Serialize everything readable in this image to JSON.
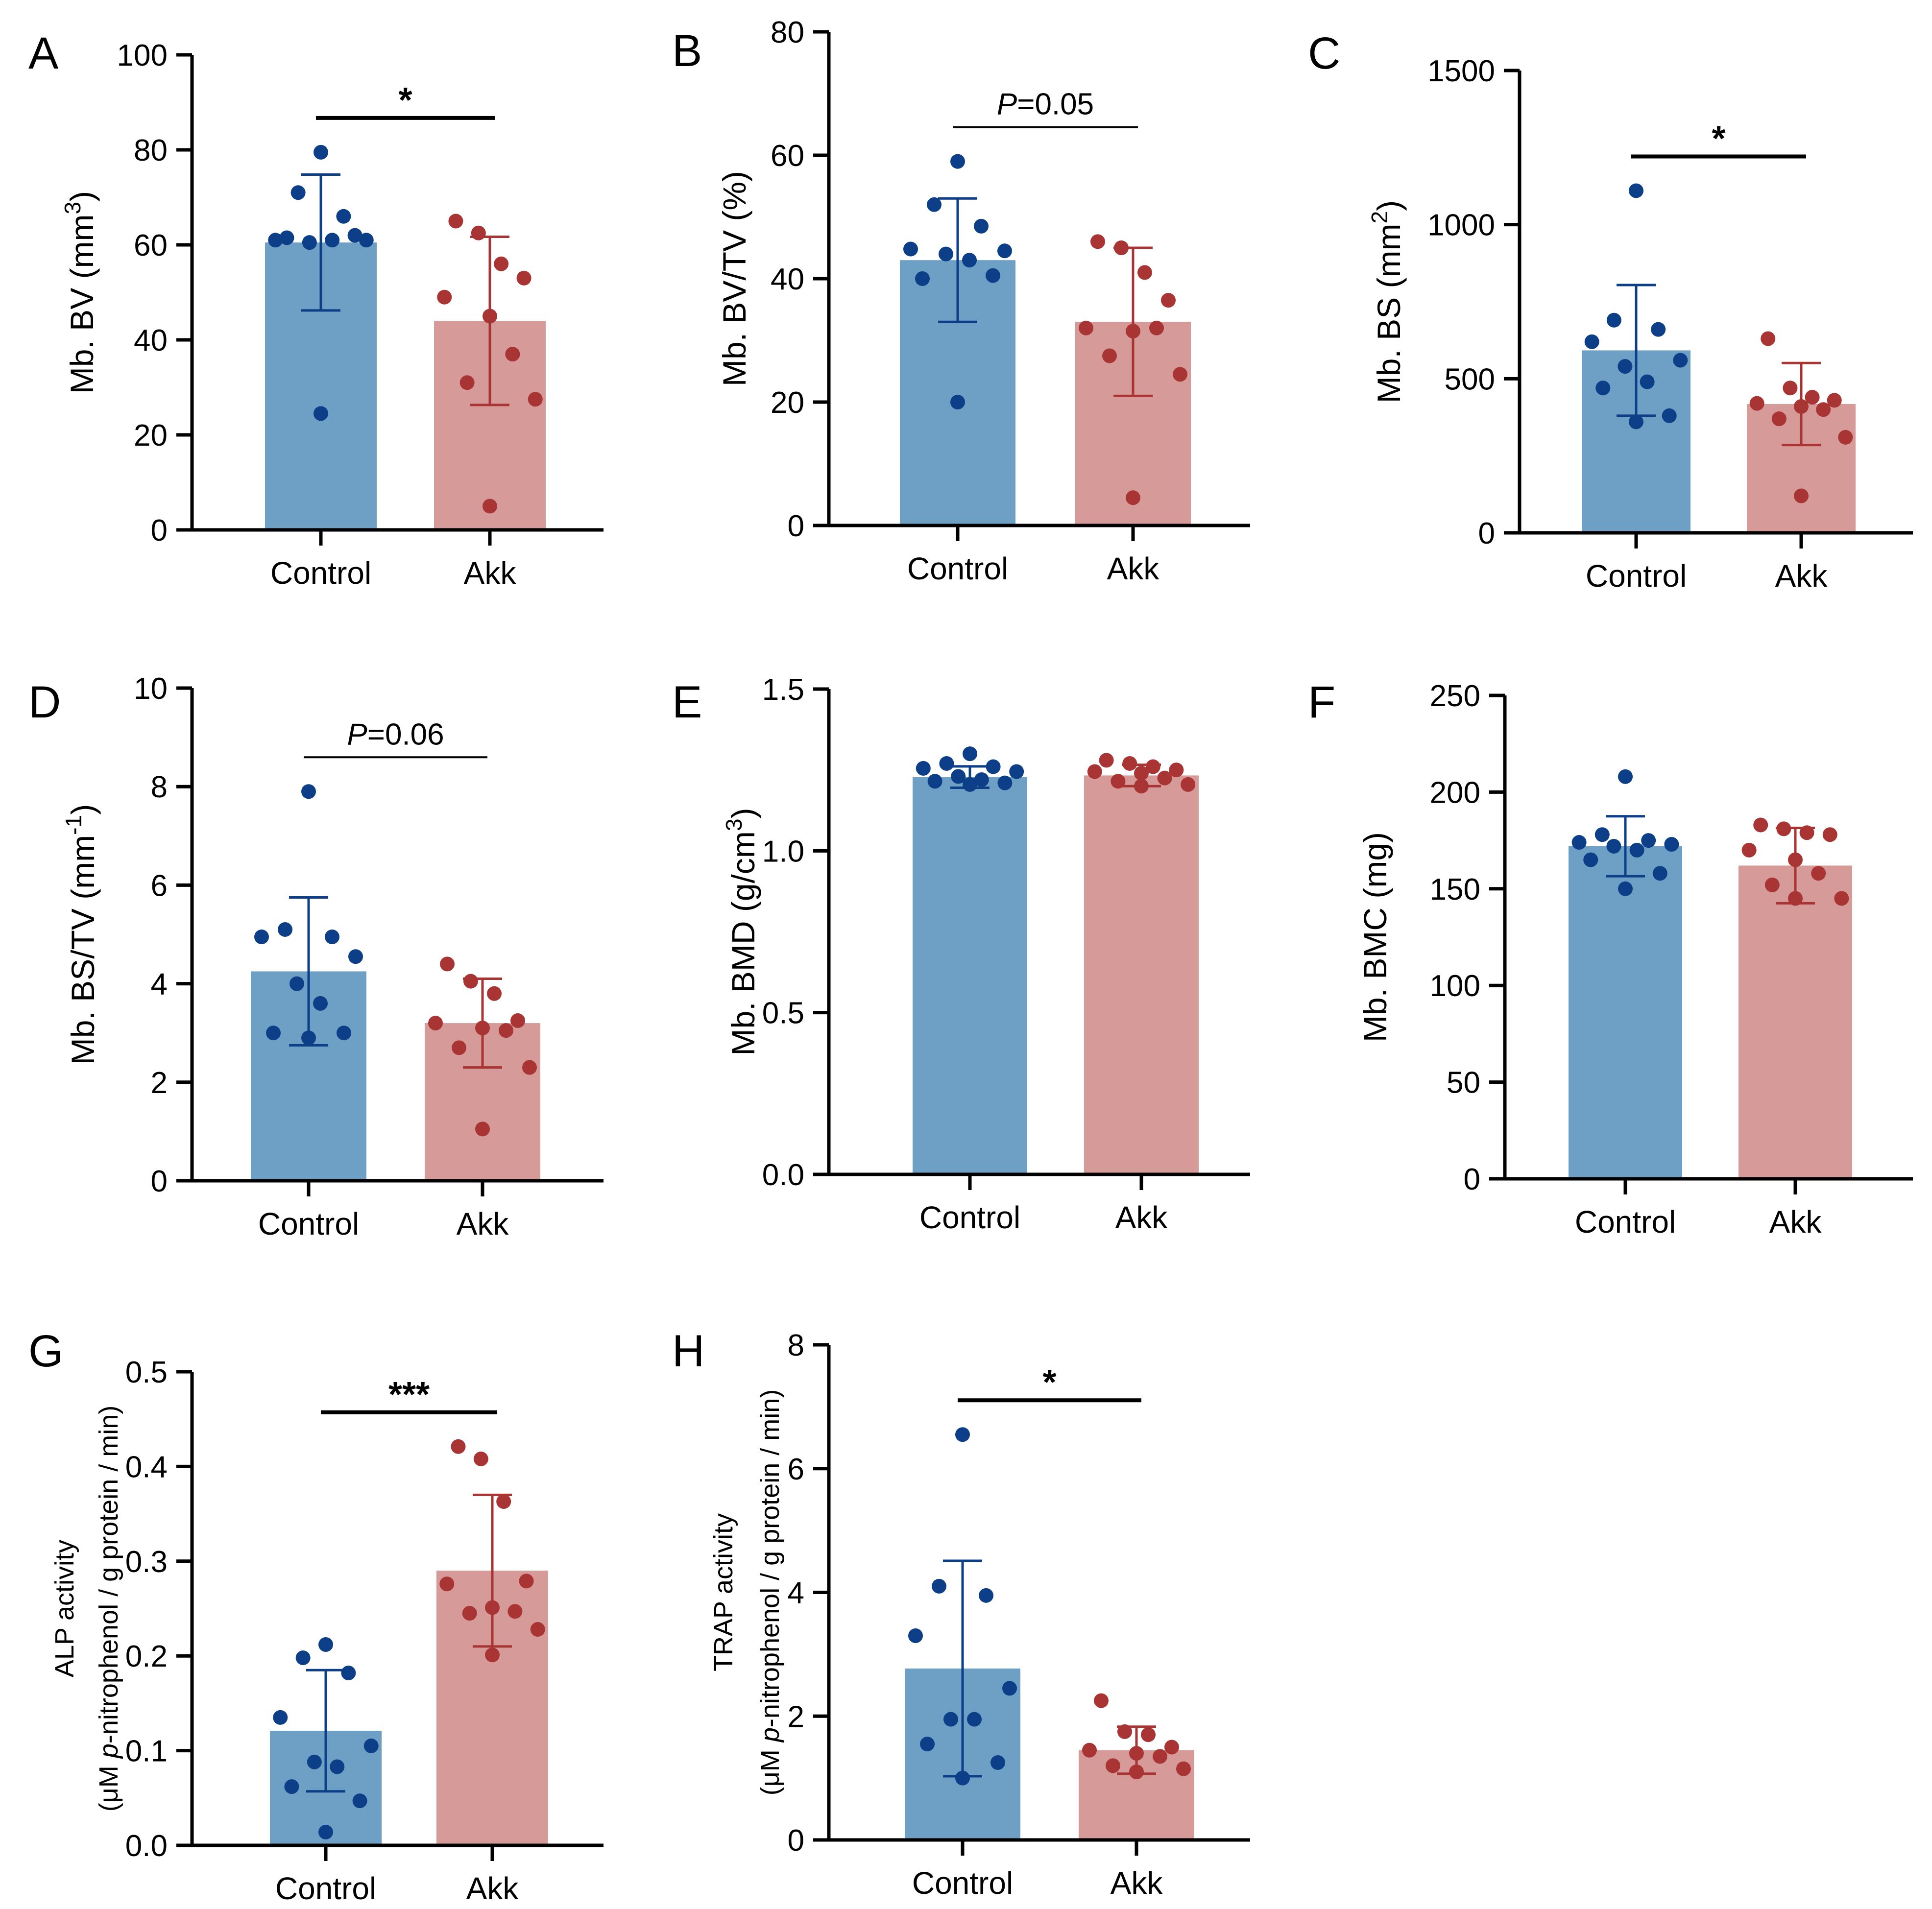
{
  "colors": {
    "control_bar": "#6e9fc4",
    "control_point": "#0d3f88",
    "akk_bar": "#d69a98",
    "akk_point": "#a93434"
  },
  "chart_data": [
    {
      "id": "A",
      "type": "bar",
      "letter": "A",
      "ylabel_parts": [
        {
          "t": "Mb. BV (mm"
        },
        {
          "t": "3",
          "sup": true
        },
        {
          "t": ")"
        }
      ],
      "ylim": [
        0,
        100
      ],
      "yticks": [
        "0",
        "20",
        "40",
        "60",
        "80",
        "100"
      ],
      "ytick_values": [
        0,
        20,
        40,
        60,
        80,
        100
      ],
      "categories": [
        "Control",
        "Akk"
      ],
      "means": [
        60.5,
        44.0
      ],
      "sd": [
        14.3,
        17.7
      ],
      "points": [
        [
          79.5,
          71,
          66,
          61,
          61,
          60.5,
          61,
          61.5,
          62,
          24.5
        ],
        [
          65,
          62.5,
          56,
          53,
          49,
          45,
          37,
          31,
          27.5,
          5
        ]
      ],
      "significance": {
        "label": "*",
        "italic_p": false
      }
    },
    {
      "id": "B",
      "type": "bar",
      "letter": "B",
      "ylabel_parts": [
        {
          "t": "Mb. BV/TV (%)"
        }
      ],
      "ylim": [
        0,
        80
      ],
      "yticks": [
        "0",
        "20",
        "40",
        "60",
        "80"
      ],
      "ytick_values": [
        0,
        20,
        40,
        60,
        80
      ],
      "categories": [
        "Control",
        "Akk"
      ],
      "means": [
        43.0,
        33.0
      ],
      "sd": [
        10.0,
        12.0
      ],
      "points": [
        [
          59,
          52,
          48.5,
          44.8,
          44.5,
          44,
          43,
          40,
          40.5,
          20
        ],
        [
          46,
          45,
          41,
          36.5,
          32,
          31.5,
          32,
          27.5,
          24.5,
          4.5
        ]
      ],
      "significance": {
        "label": "=0.05",
        "italic_p": true,
        "p": "P"
      }
    },
    {
      "id": "C",
      "type": "bar",
      "letter": "C",
      "ylabel_parts": [
        {
          "t": "Mb. BS (mm"
        },
        {
          "t": "2",
          "sup": true
        },
        {
          "t": ")"
        }
      ],
      "ylim": [
        0,
        1500
      ],
      "yticks": [
        "0",
        "500",
        "1000",
        "1500"
      ],
      "ytick_values": [
        0,
        500,
        1000,
        1500
      ],
      "categories": [
        "Control",
        "Akk"
      ],
      "means": [
        592,
        418
      ],
      "sd": [
        212,
        133
      ],
      "points": [
        [
          1110,
          690,
          660,
          620,
          560,
          540,
          490,
          470,
          380,
          360
        ],
        [
          630,
          470,
          440,
          430,
          420,
          410,
          400,
          370,
          310,
          120
        ]
      ],
      "significance": {
        "label": "*",
        "italic_p": false
      }
    },
    {
      "id": "D",
      "type": "bar",
      "letter": "D",
      "ylabel_parts": [
        {
          "t": "Mb. BS/TV (mm"
        },
        {
          "t": "-1",
          "sup": true
        },
        {
          "t": ")"
        }
      ],
      "ylim": [
        0,
        10
      ],
      "yticks": [
        "0",
        "2",
        "4",
        "6",
        "8",
        "10"
      ],
      "ytick_values": [
        0,
        2,
        4,
        6,
        8,
        10
      ],
      "categories": [
        "Control",
        "Akk"
      ],
      "means": [
        4.25,
        3.2
      ],
      "sd": [
        1.5,
        0.9
      ],
      "points": [
        [
          7.9,
          5.1,
          4.95,
          4.95,
          4.55,
          4.0,
          3.6,
          3.0,
          3.0,
          2.9
        ],
        [
          4.4,
          4.05,
          3.8,
          3.25,
          3.2,
          3.1,
          3.05,
          2.7,
          2.3,
          1.05
        ]
      ],
      "significance": {
        "label": "=0.06",
        "italic_p": true,
        "p": "P"
      }
    },
    {
      "id": "E",
      "type": "bar",
      "letter": "E",
      "ylabel_parts": [
        {
          "t": "Mb. BMD (g/cm"
        },
        {
          "t": "3",
          "sup": true
        },
        {
          "t": ")"
        }
      ],
      "ylim": [
        0,
        1.5
      ],
      "yticks": [
        "0.0",
        "0.5",
        "1.0",
        "1.5"
      ],
      "ytick_values": [
        0,
        0.5,
        1.0,
        1.5
      ],
      "categories": [
        "Control",
        "Akk"
      ],
      "means": [
        1.228,
        1.233
      ],
      "sd": [
        0.033,
        0.033
      ],
      "points": [
        [
          1.3,
          1.27,
          1.26,
          1.255,
          1.245,
          1.23,
          1.22,
          1.215,
          1.21,
          1.205
        ],
        [
          1.28,
          1.27,
          1.26,
          1.25,
          1.245,
          1.24,
          1.225,
          1.215,
          1.205,
          1.2
        ]
      ],
      "significance": null
    },
    {
      "id": "F",
      "type": "bar",
      "letter": "F",
      "ylabel_parts": [
        {
          "t": "Mb. BMC (mg)"
        }
      ],
      "ylim": [
        0,
        250
      ],
      "yticks": [
        "0",
        "50",
        "100",
        "150",
        "200",
        "250"
      ],
      "ytick_values": [
        0,
        50,
        100,
        150,
        200,
        250
      ],
      "categories": [
        "Control",
        "Akk"
      ],
      "means": [
        172,
        162
      ],
      "sd": [
        15.5,
        19.5
      ],
      "points": [
        [
          208,
          178,
          175,
          174,
          173,
          172,
          170,
          165,
          158,
          150
        ],
        [
          183,
          181,
          179,
          178,
          170,
          165,
          158,
          152,
          145,
          145
        ]
      ],
      "significance": null
    },
    {
      "id": "G",
      "type": "bar",
      "letter": "G",
      "ylabel_lines": [
        [
          {
            "t": "ALP activity"
          }
        ],
        [
          {
            "t": "(μM "
          },
          {
            "t": "p",
            "italic": true
          },
          {
            "t": "-nitrophenol / g protein / min)"
          }
        ]
      ],
      "ylim": [
        0,
        0.5
      ],
      "yticks": [
        "0.0",
        "0.1",
        "0.2",
        "0.3",
        "0.4",
        "0.5"
      ],
      "ytick_values": [
        0,
        0.1,
        0.2,
        0.3,
        0.4,
        0.5
      ],
      "categories": [
        "Control",
        "Akk"
      ],
      "means": [
        0.121,
        0.29
      ],
      "sd": [
        0.064,
        0.08
      ],
      "points": [
        [
          0.212,
          0.198,
          0.182,
          0.135,
          0.105,
          0.088,
          0.083,
          0.062,
          0.047,
          0.014
        ],
        [
          0.421,
          0.408,
          0.363,
          0.279,
          0.276,
          0.251,
          0.247,
          0.245,
          0.228,
          0.201
        ]
      ],
      "significance": {
        "label": "***",
        "italic_p": false
      }
    },
    {
      "id": "H",
      "type": "bar",
      "letter": "H",
      "ylabel_lines": [
        [
          {
            "t": "TRAP activity"
          }
        ],
        [
          {
            "t": "(μM "
          },
          {
            "t": "p",
            "italic": true
          },
          {
            "t": "-nitrophenol / g protein / min)"
          }
        ]
      ],
      "ylim": [
        0,
        8
      ],
      "yticks": [
        "0",
        "2",
        "4",
        "6",
        "8"
      ],
      "ytick_values": [
        0,
        2,
        4,
        6,
        8
      ],
      "categories": [
        "Control",
        "Akk"
      ],
      "means": [
        2.77,
        1.45
      ],
      "sd": [
        1.74,
        0.38
      ],
      "points": [
        [
          6.55,
          4.1,
          3.95,
          3.3,
          2.45,
          1.95,
          1.95,
          1.55,
          1.25,
          1.0
        ],
        [
          2.25,
          1.75,
          1.7,
          1.5,
          1.45,
          1.4,
          1.35,
          1.2,
          1.15,
          1.1
        ]
      ],
      "significance": {
        "label": "*",
        "italic_p": false
      }
    }
  ]
}
